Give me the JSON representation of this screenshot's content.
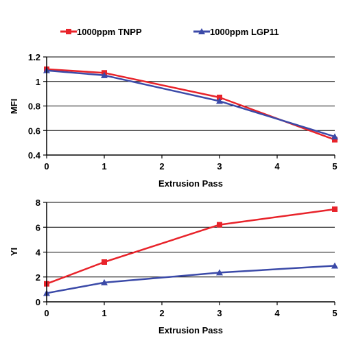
{
  "legend": [
    {
      "label": "1000ppm TNPP",
      "color": "#e8232a",
      "marker": "square"
    },
    {
      "label": "1000ppm LGP11",
      "color": "#3b4aa8",
      "marker": "triangle"
    }
  ],
  "chart_data": [
    {
      "type": "line",
      "title": "",
      "xlabel": "Extrusion Pass",
      "ylabel": "MFI",
      "xlim": [
        0,
        5
      ],
      "ylim": [
        0.4,
        1.2
      ],
      "xticks": [
        "0",
        "1",
        "2",
        "3",
        "4",
        "5"
      ],
      "yticks": [
        "0.4",
        "0.6",
        "0.8",
        "1",
        "1.2"
      ],
      "grid": "horizontal",
      "legend": "top",
      "series": [
        {
          "name": "1000ppm TNPP",
          "color": "#e8232a",
          "marker": "square",
          "x": [
            0,
            1,
            3,
            5
          ],
          "y": [
            1.1,
            1.07,
            0.87,
            0.525
          ]
        },
        {
          "name": "1000ppm LGP11",
          "color": "#3b4aa8",
          "marker": "triangle",
          "x": [
            0,
            1,
            3,
            5
          ],
          "y": [
            1.09,
            1.05,
            0.84,
            0.55
          ]
        }
      ]
    },
    {
      "type": "line",
      "title": "",
      "xlabel": "Extrusion Pass",
      "ylabel": "YI",
      "xlim": [
        0,
        5
      ],
      "ylim": [
        0,
        8
      ],
      "xticks": [
        "0",
        "1",
        "2",
        "3",
        "4",
        "5"
      ],
      "yticks": [
        "0",
        "2",
        "4",
        "6",
        "8"
      ],
      "grid": "horizontal",
      "series": [
        {
          "name": "1000ppm TNPP",
          "color": "#e8232a",
          "marker": "square",
          "x": [
            0,
            1,
            3,
            5
          ],
          "y": [
            1.45,
            3.2,
            6.2,
            7.45
          ]
        },
        {
          "name": "1000ppm LGP11",
          "color": "#3b4aa8",
          "marker": "triangle",
          "x": [
            0,
            1,
            3,
            5
          ],
          "y": [
            0.7,
            1.55,
            2.35,
            2.9
          ]
        }
      ]
    }
  ]
}
